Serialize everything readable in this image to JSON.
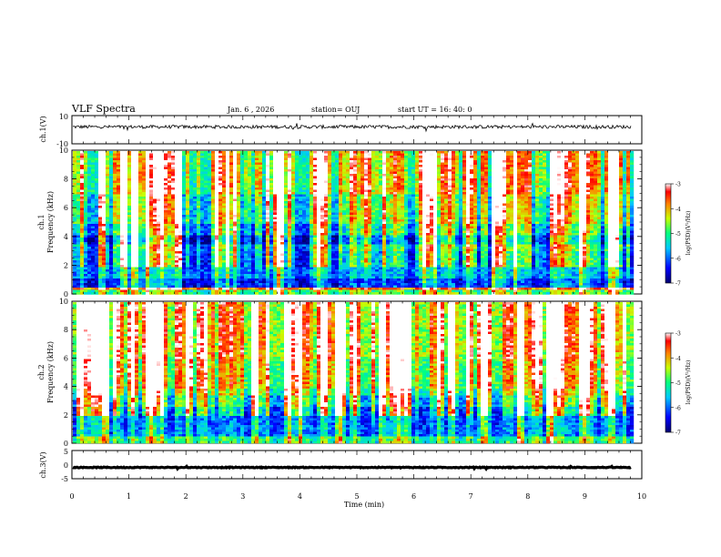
{
  "header": {
    "title": "VLF Spectra",
    "date": "Jan. 6 , 2026",
    "station": "station= OUJ",
    "start_ut": "start  UT =   16: 40: 0"
  },
  "chart_data": [
    {
      "type": "line",
      "name": "ch1-waveform",
      "ylabel": "ch.1(V)",
      "ylim": [
        -10,
        10
      ],
      "yticks": [
        "10",
        "-10"
      ],
      "baseline": 2,
      "noise_amplitude": 1.2
    },
    {
      "type": "heatmap",
      "name": "ch1-spectrogram",
      "ylabel_channel": "ch.1",
      "ylabel": "Frequency  (kHz)",
      "ylim": [
        0,
        10
      ],
      "yticks": [
        "0",
        "2",
        "4",
        "6",
        "8",
        "10"
      ],
      "xlim": [
        0,
        10
      ],
      "colorbar": {
        "label": "log(PSD)(V²/Hz)",
        "range": [
          -7,
          -3
        ],
        "ticks": [
          "-3",
          "-4",
          "-5",
          "-6",
          "-7"
        ]
      },
      "bands": [
        {
          "f0": 0.0,
          "f1": 0.3,
          "level": 0.45
        },
        {
          "f0": 0.3,
          "f1": 0.6,
          "level": 0.75
        },
        {
          "f0": 0.6,
          "f1": 1.2,
          "level": 0.1
        },
        {
          "f0": 1.2,
          "f1": 2.0,
          "level": 0.22
        },
        {
          "f0": 2.0,
          "f1": 3.0,
          "level": 0.15
        },
        {
          "f0": 3.0,
          "f1": 3.6,
          "level": 0.2
        },
        {
          "f0": 3.6,
          "f1": 4.2,
          "level": 0.06
        },
        {
          "f0": 4.2,
          "f1": 5.0,
          "level": 0.22
        },
        {
          "f0": 5.0,
          "f1": 7.0,
          "level": 0.33
        },
        {
          "f0": 7.0,
          "f1": 10.0,
          "level": 0.45
        }
      ]
    },
    {
      "type": "heatmap",
      "name": "ch2-spectrogram",
      "ylabel_channel": "ch.2",
      "ylabel": "Frequency  (kHz)",
      "ylim": [
        0,
        10
      ],
      "yticks": [
        "0",
        "2",
        "4",
        "6",
        "8",
        "10"
      ],
      "xlim": [
        0,
        10
      ],
      "colorbar": {
        "label": "log(PSD)(V²/Hz)",
        "range": [
          -7,
          -3
        ],
        "ticks": [
          "-3",
          "-4",
          "-5",
          "-6",
          "-7"
        ]
      },
      "bands": [
        {
          "f0": 0.0,
          "f1": 0.6,
          "level": 0.4
        },
        {
          "f0": 0.6,
          "f1": 1.4,
          "level": 0.2
        },
        {
          "f0": 1.4,
          "f1": 2.6,
          "level": 0.18
        },
        {
          "f0": 2.6,
          "f1": 3.4,
          "level": 0.3
        },
        {
          "f0": 3.4,
          "f1": 4.0,
          "level": 0.42
        },
        {
          "f0": 4.0,
          "f1": 6.0,
          "level": 0.52
        },
        {
          "f0": 6.0,
          "f1": 10.0,
          "level": 0.6
        }
      ]
    },
    {
      "type": "line",
      "name": "ch3-waveform",
      "ylabel": "ch.3(V)",
      "ylim": [
        -5,
        5
      ],
      "yticks": [
        "5",
        "0",
        "-5"
      ],
      "baseline": -1,
      "noise_amplitude": 0.15
    }
  ],
  "xaxis": {
    "label": "Time  (min)",
    "range": [
      0,
      10
    ],
    "ticks": [
      "0",
      "1",
      "2",
      "3",
      "4",
      "5",
      "6",
      "7",
      "8",
      "9",
      "10"
    ]
  }
}
